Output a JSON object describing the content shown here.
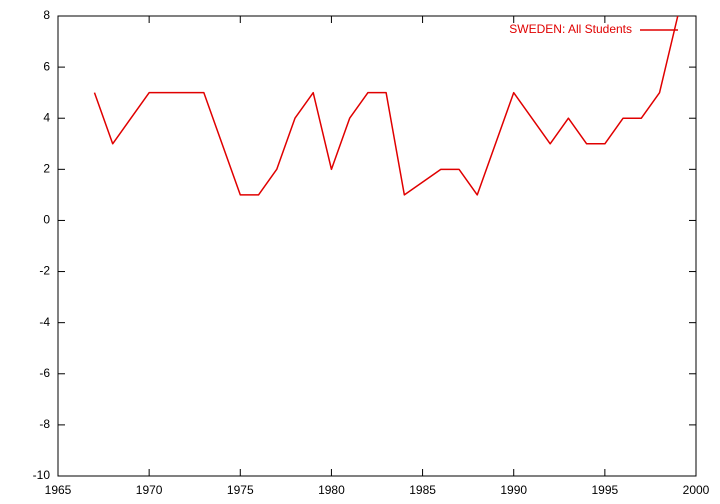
{
  "chart_data": {
    "type": "line",
    "x": [
      1967,
      1968,
      1970,
      1973,
      1975,
      1976,
      1977,
      1978,
      1979,
      1980,
      1981,
      1982,
      1983,
      1984,
      1986,
      1987,
      1988,
      1990,
      1992,
      1993,
      1994,
      1995,
      1996,
      1997,
      1998,
      1999
    ],
    "series": [
      {
        "name": "SWEDEN: All Students",
        "color": "#e00000",
        "values": [
          5,
          3,
          5,
          5,
          1,
          1,
          2,
          4,
          5,
          2,
          4,
          5,
          5,
          1,
          2,
          2,
          1,
          5,
          3,
          4,
          3,
          3,
          4,
          4,
          5,
          8
        ]
      }
    ],
    "xlim": [
      1965,
      2000
    ],
    "xticks": [
      1965,
      1970,
      1975,
      1980,
      1985,
      1990,
      1995,
      2000
    ],
    "ylim": [
      -10,
      8
    ],
    "yticks": [
      -10,
      -8,
      -6,
      -4,
      -2,
      0,
      2,
      4,
      6,
      8
    ],
    "grid": false,
    "legend": "top-right"
  }
}
